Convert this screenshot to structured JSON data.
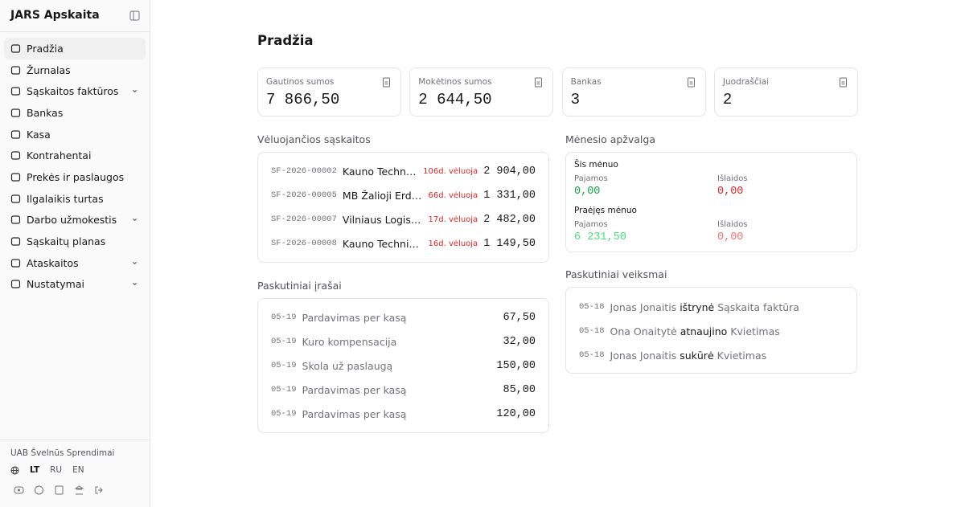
{
  "sidebar": {
    "brand": "JARS Apskaita",
    "nav": [
      {
        "label": "Pradžia",
        "active": true
      },
      {
        "label": "Žurnalas"
      },
      {
        "label": "Sąskaitos faktūros",
        "has_submenu": true
      },
      {
        "label": "Bankas"
      },
      {
        "label": "Kasa"
      },
      {
        "label": "Kontrahentai"
      },
      {
        "label": "Prekės ir paslaugos"
      },
      {
        "label": "Ilgalaikis turtas"
      },
      {
        "label": "Darbo užmokestis",
        "has_submenu": true
      },
      {
        "label": "Sąskaitų planas"
      },
      {
        "label": "Ataskaitos",
        "has_submenu": true
      },
      {
        "label": "Nustatymai",
        "has_submenu": true
      }
    ],
    "company": "UAB Švelnūs Sprendimai",
    "languages": [
      {
        "code": "LT",
        "active": true
      },
      {
        "code": "RU"
      },
      {
        "code": "EN"
      }
    ]
  },
  "page": {
    "title": "Pradžia",
    "stats": [
      {
        "label": "Gautinos sumos",
        "value": "7 866,50"
      },
      {
        "label": "Mokėtinos sumos",
        "value": "2 644,50"
      },
      {
        "label": "Bankas",
        "value": "3"
      },
      {
        "label": "Juodraščiai",
        "value": "2"
      }
    ],
    "overdue": {
      "title": "Vėluojančios sąskaitos",
      "rows": [
        {
          "number": "SF-2026-00002",
          "client": "Kauno Technika UAB",
          "late": "106d. vėluoja",
          "amount": "2 904,00"
        },
        {
          "number": "SF-2026-00005",
          "client": "MB Žalioji Erdvė",
          "late": "66d. vėluoja",
          "amount": "1 331,00"
        },
        {
          "number": "SF-2026-00007",
          "client": "Vilniaus Logistika UAB",
          "late": "17d. vėluoja",
          "amount": "2 482,00"
        },
        {
          "number": "SF-2026-00008",
          "client": "Kauno Technika UAB",
          "late": "16d. vėluoja",
          "amount": "1 149,50"
        }
      ]
    },
    "entries": {
      "title": "Paskutiniai įrašai",
      "rows": [
        {
          "date": "05-19",
          "description": "Pardavimas per kasą",
          "amount": "67,50"
        },
        {
          "date": "05-19",
          "description": "Kuro kompensacija",
          "amount": "32,00"
        },
        {
          "date": "05-19",
          "description": "Skola už paslaugą",
          "amount": "150,00"
        },
        {
          "date": "05-19",
          "description": "Pardavimas per kasą",
          "amount": "85,00"
        },
        {
          "date": "05-19",
          "description": "Pardavimas per kasą",
          "amount": "120,00"
        }
      ]
    },
    "month": {
      "title": "Mėnesio apžvalga",
      "periods": [
        {
          "name": "Šis mėnuo",
          "income_label": "Pajamos",
          "income": "0,00",
          "expense_label": "Išlaidos",
          "expense": "0,00"
        },
        {
          "name": "Praėjęs mėnuo",
          "income_label": "Pajamos",
          "income": "6 231,50",
          "expense_label": "Išlaidos",
          "expense": "0,00"
        }
      ]
    },
    "actions": {
      "title": "Paskutiniai veiksmai",
      "rows": [
        {
          "date": "05-18",
          "user": "Jonas Jonaitis",
          "verb": "ištrynė",
          "object": "Sąskaita faktūra"
        },
        {
          "date": "05-18",
          "user": "Ona Onaitytė",
          "verb": "atnaujino",
          "object": "Kvietimas"
        },
        {
          "date": "05-18",
          "user": "Jonas Jonaitis",
          "verb": "sukūrė",
          "object": "Kvietimas"
        }
      ]
    }
  }
}
